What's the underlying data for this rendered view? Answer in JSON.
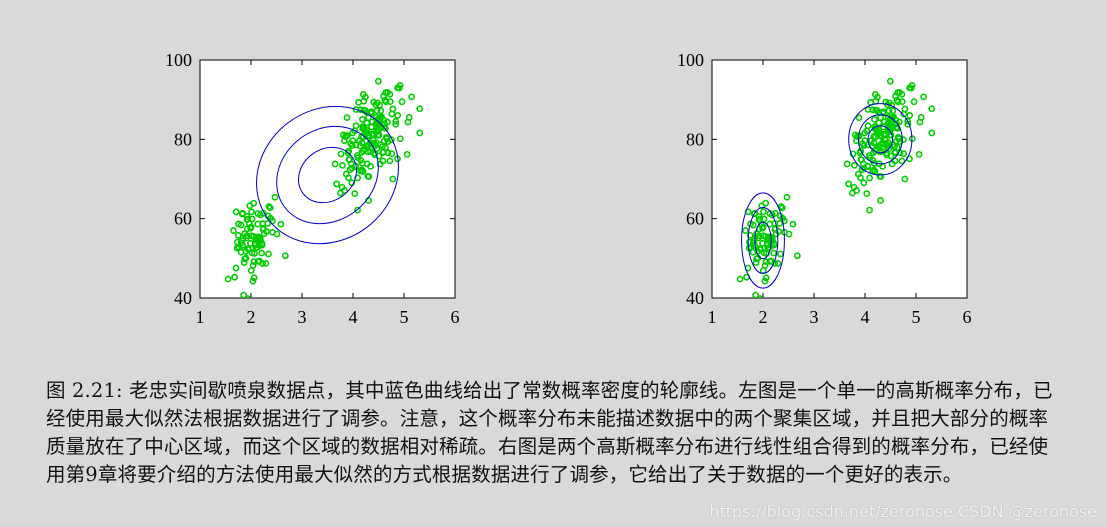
{
  "chart_data": [
    {
      "type": "scatter",
      "title": "",
      "xlabel": "",
      "ylabel": "",
      "xlim": [
        1,
        6
      ],
      "ylim": [
        40,
        100
      ],
      "x_ticks": [
        "1",
        "2",
        "3",
        "4",
        "5",
        "6"
      ],
      "y_ticks": [
        "40",
        "60",
        "80",
        "100"
      ],
      "grid": false,
      "point_color": "#00cc00",
      "contour_color": "#0000cc",
      "seed": 7,
      "clusters": [
        {
          "name": "",
          "center": [
            2.05,
            54.5
          ],
          "spread": [
            0.2,
            5.0
          ],
          "count": 95
        },
        {
          "name": "",
          "center": [
            4.32,
            80.0
          ],
          "spread": [
            0.32,
            5.8
          ],
          "count": 170
        }
      ],
      "contours": [
        {
          "center": [
            3.5,
            71.0
          ],
          "rx": [
            1.45,
            1.05,
            0.6
          ],
          "ry": [
            16.5,
            11.5,
            6.5
          ],
          "angle_deg": 37
        }
      ]
    },
    {
      "type": "scatter",
      "title": "",
      "xlabel": "",
      "ylabel": "",
      "xlim": [
        1,
        6
      ],
      "ylim": [
        40,
        100
      ],
      "x_ticks": [
        "1",
        "2",
        "3",
        "4",
        "5",
        "6"
      ],
      "y_ticks": [
        "40",
        "60",
        "80",
        "100"
      ],
      "grid": false,
      "point_color": "#00cc00",
      "contour_color": "#0000cc",
      "seed": 7,
      "clusters": [
        {
          "name": "",
          "center": [
            2.05,
            54.5
          ],
          "spread": [
            0.2,
            5.0
          ],
          "count": 95
        },
        {
          "name": "",
          "center": [
            4.32,
            80.0
          ],
          "spread": [
            0.32,
            5.8
          ],
          "count": 170
        }
      ],
      "contours": [
        {
          "center": [
            2.0,
            54.5
          ],
          "rx": [
            0.42,
            0.29,
            0.16
          ],
          "ry": [
            12.0,
            8.3,
            4.6
          ],
          "angle_deg": 0
        },
        {
          "center": [
            4.3,
            80.0
          ],
          "rx": [
            0.62,
            0.43,
            0.24
          ],
          "ry": [
            9.0,
            6.2,
            3.4
          ],
          "angle_deg": 0
        }
      ]
    }
  ],
  "caption": "图 2.21: 老忠实间歇喷泉数据点，其中蓝色曲线给出了常数概率密度的轮廓线。左图是一个单一的高斯概率分布，已经使用最大似然法根据数据进行了调参。注意，这个概率分布未能描述数据中的两个聚集区域，并且把大部分的概率质量放在了中心区域，而这个区域的数据相对稀疏。右图是两个高斯概率分布进行线性组合得到的概率分布，已经使用第9章将要介绍的方法使用最大似然的方式根据数据进行了调参，它给出了关于数据的一个更好的表示。",
  "watermark": "https://blog.csdn.net/zeronose  CSDN @zeronose"
}
